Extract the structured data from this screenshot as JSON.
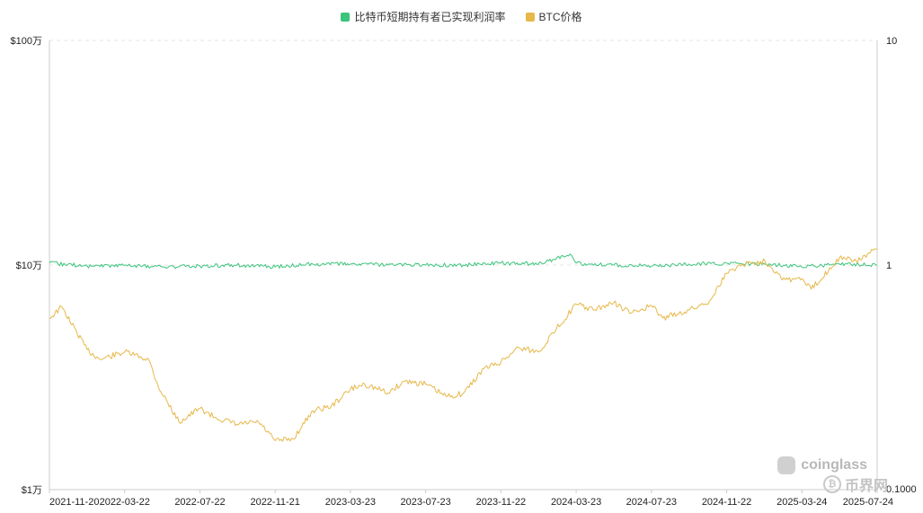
{
  "legend": [
    {
      "label": "比特币短期持有者已实现利润率",
      "color": "#3cc47c"
    },
    {
      "label": "BTC价格",
      "color": "#e6b84a"
    }
  ],
  "watermark": {
    "brand": "coinglass",
    "badge": "币界网"
  },
  "chart_data": {
    "type": "line",
    "x_ticks": [
      "2021-11-20",
      "2022-03-22",
      "2022-07-22",
      "2022-11-21",
      "2023-03-23",
      "2023-07-23",
      "2023-11-22",
      "2024-03-23",
      "2024-07-23",
      "2024-11-22",
      "2025-03-24",
      "2025-07-24"
    ],
    "y_left": {
      "scale": "log",
      "range": [
        10000,
        1000000
      ],
      "ticks": [
        "$1万",
        "$10万",
        "$100万"
      ]
    },
    "y_right": {
      "scale": "log",
      "range": [
        0.1,
        10
      ],
      "ticks": [
        "0.1000",
        "1",
        "10"
      ]
    },
    "grid": "horizontal-dashed",
    "legend_position": "top-center",
    "series": [
      {
        "name": "比特币短期持有者已实现利润率",
        "axis": "right",
        "color": "#3cc47c",
        "x": [
          "2021-11-20",
          "2022-01-20",
          "2022-03-22",
          "2022-05-22",
          "2022-07-22",
          "2022-09-20",
          "2022-11-21",
          "2023-01-21",
          "2023-03-23",
          "2023-05-23",
          "2023-07-23",
          "2023-09-22",
          "2023-11-22",
          "2024-01-22",
          "2024-03-13",
          "2024-03-23",
          "2024-05-23",
          "2024-07-23",
          "2024-09-22",
          "2024-11-22",
          "2025-01-23",
          "2025-03-24",
          "2025-05-24",
          "2025-07-24"
        ],
        "values": [
          1.02,
          0.99,
          1.0,
          0.98,
          0.99,
          1.0,
          0.98,
          1.01,
          1.01,
          1.0,
          1.0,
          1.0,
          1.02,
          1.01,
          1.12,
          1.02,
          1.0,
          0.99,
          1.01,
          1.02,
          1.01,
          0.98,
          1.01,
          1.0
        ]
      },
      {
        "name": "BTC价格",
        "axis": "left",
        "color": "#e6b84a",
        "x": [
          "2021-11-20",
          "2021-12-10",
          "2022-01-20",
          "2022-02-10",
          "2022-03-22",
          "2022-04-30",
          "2022-05-15",
          "2022-06-18",
          "2022-07-22",
          "2022-08-15",
          "2022-09-20",
          "2022-10-25",
          "2022-11-21",
          "2022-12-20",
          "2023-01-21",
          "2023-02-20",
          "2023-03-23",
          "2023-04-15",
          "2023-05-23",
          "2023-06-20",
          "2023-07-23",
          "2023-08-25",
          "2023-09-22",
          "2023-10-25",
          "2023-11-22",
          "2023-12-20",
          "2024-01-22",
          "2024-02-20",
          "2024-03-23",
          "2024-04-20",
          "2024-05-23",
          "2024-06-20",
          "2024-07-23",
          "2024-08-10",
          "2024-09-22",
          "2024-10-25",
          "2024-11-22",
          "2024-12-17",
          "2025-01-23",
          "2025-02-25",
          "2025-03-24",
          "2025-04-08",
          "2025-05-24",
          "2025-06-20",
          "2025-07-24"
        ],
        "values": [
          58000,
          65000,
          42000,
          38000,
          41000,
          38000,
          29000,
          20000,
          23000,
          21000,
          19500,
          20000,
          16500,
          16800,
          22500,
          23500,
          28000,
          29500,
          27000,
          30500,
          29500,
          26000,
          26800,
          34500,
          37000,
          43000,
          41000,
          52000,
          67000,
          63000,
          68000,
          61000,
          66000,
          58000,
          63000,
          69000,
          92000,
          101000,
          104000,
          86000,
          87000,
          78000,
          108000,
          104000,
          118000
        ]
      }
    ]
  }
}
